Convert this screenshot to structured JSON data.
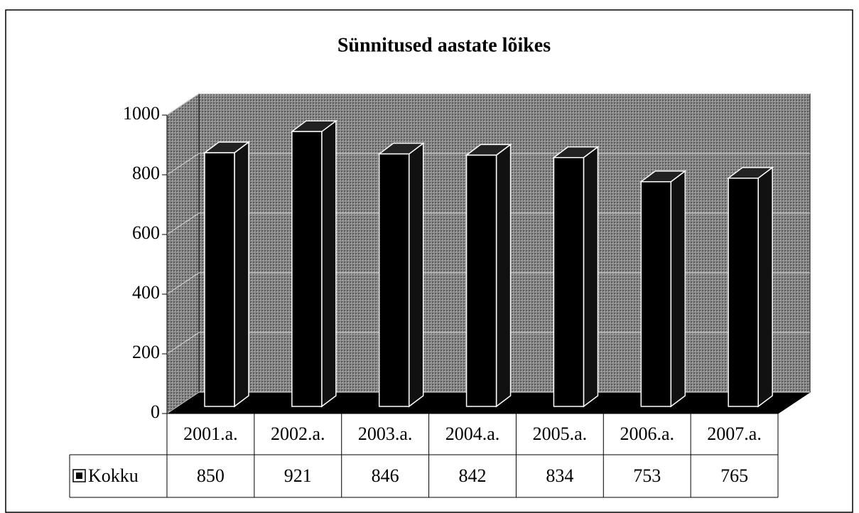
{
  "chart_data": {
    "type": "bar",
    "title": "Sünnitused aastate lõikes",
    "categories": [
      "2001.a.",
      "2002.a.",
      "2003.a.",
      "2004.a.",
      "2005.a.",
      "2006.a.",
      "2007.a."
    ],
    "series": [
      {
        "name": "Kokku",
        "color": "#000000",
        "values": [
          850,
          921,
          846,
          842,
          834,
          753,
          765
        ]
      }
    ],
    "ylim": [
      0,
      1000
    ],
    "yticks": [
      0,
      200,
      400,
      600,
      800,
      1000
    ],
    "grid": true
  }
}
